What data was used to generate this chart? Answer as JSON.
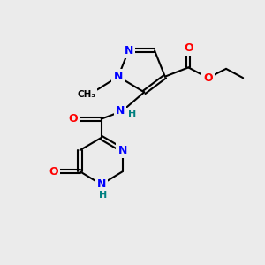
{
  "background_color": "#EBEBEB",
  "bond_color": "#000000",
  "atom_colors": {
    "N": "#0000FF",
    "O": "#FF0000",
    "H": "#008080",
    "C": "#000000"
  },
  "figsize": [
    3.0,
    3.0
  ],
  "dpi": 100
}
